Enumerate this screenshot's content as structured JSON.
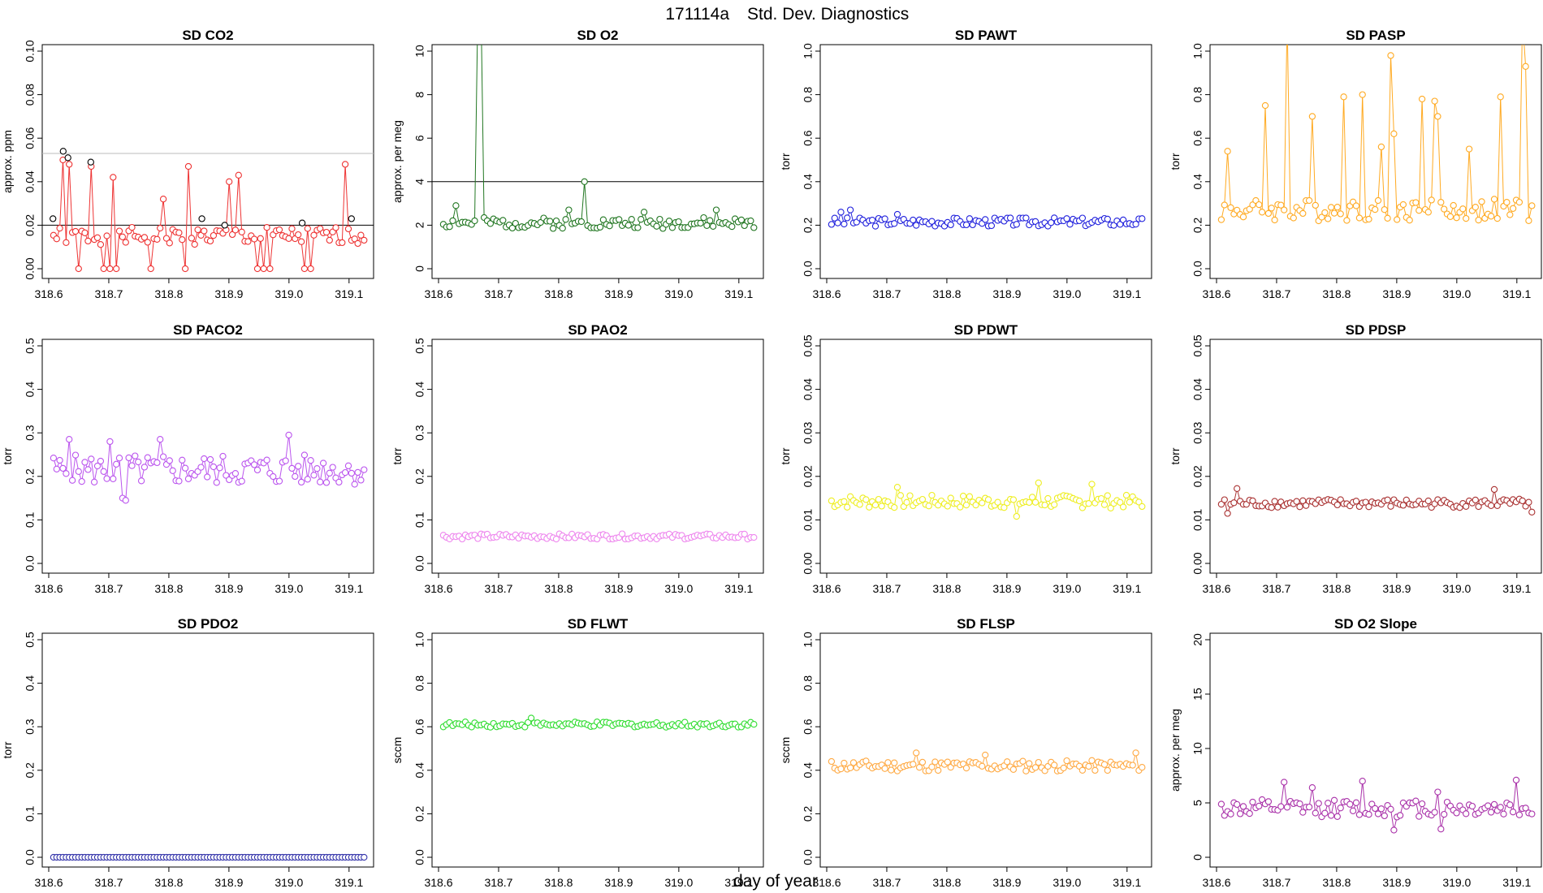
{
  "figure": {
    "title_id": "171114a",
    "title_text": "Std. Dev. Diagnostics",
    "xlabel": "day of year"
  },
  "chart_data": [
    {
      "title": "SD CO2",
      "type": "scatter",
      "ylabel": "approx. ppm",
      "color": "#ee3333",
      "ylim": [
        0,
        0.1
      ],
      "yticks": [
        "0.00",
        "0.02",
        "0.04",
        "0.06",
        "0.08",
        "0.10"
      ],
      "xlim": [
        318.6,
        319.13
      ],
      "xticks": [
        "318.6",
        "318.7",
        "318.8",
        "318.9",
        "319.0",
        "319.1"
      ],
      "hlines": [
        {
          "y": 0.02,
          "color": "#000000"
        },
        {
          "y": 0.053,
          "color": "#bbbbbb"
        }
      ],
      "black_points": [
        [
          318.607,
          0.023
        ],
        [
          318.624,
          0.054
        ],
        [
          318.632,
          0.051
        ],
        [
          318.67,
          0.049
        ],
        [
          318.855,
          0.023
        ],
        [
          318.893,
          0.02
        ],
        [
          319.022,
          0.021
        ],
        [
          319.104,
          0.023
        ]
      ],
      "base": 0.015,
      "amp": 0.004,
      "seed": 1,
      "spikes": [
        [
          318.624,
          0.05
        ],
        [
          318.632,
          0.048
        ],
        [
          318.67,
          0.047
        ],
        [
          318.708,
          0.042
        ],
        [
          318.77,
          0.041
        ],
        [
          318.79,
          0.032
        ],
        [
          318.832,
          0.047
        ],
        [
          318.9,
          0.04
        ],
        [
          318.915,
          0.043
        ],
        [
          318.947,
          0.049
        ],
        [
          319.095,
          0.048
        ]
      ],
      "zeros": [
        318.65,
        318.69,
        318.7,
        318.715,
        318.77,
        318.825,
        318.945,
        318.96,
        318.97,
        319.025,
        319.035
      ]
    },
    {
      "title": "SD O2",
      "type": "scatter",
      "ylabel": "approx. per meg",
      "color": "#227722",
      "ylim": [
        0,
        10
      ],
      "yticks": [
        "0",
        "2",
        "4",
        "6",
        "8",
        "10"
      ],
      "xlim": [
        318.6,
        319.13
      ],
      "xticks": [
        "318.6",
        "318.7",
        "318.8",
        "318.9",
        "319.0",
        "319.1"
      ],
      "hlines": [
        {
          "y": 4,
          "color": "#000000"
        }
      ],
      "base": 2.1,
      "amp": 0.25,
      "seed": 2,
      "spikes": [
        [
          318.63,
          2.9
        ],
        [
          318.665,
          12.0
        ],
        [
          318.673,
          12.0
        ],
        [
          318.818,
          2.7
        ],
        [
          318.843,
          4.0
        ],
        [
          318.942,
          2.6
        ],
        [
          319.06,
          2.7
        ]
      ],
      "zeros": []
    },
    {
      "title": "SD PAWT",
      "type": "scatter",
      "ylabel": "torr",
      "color": "#2222dd",
      "ylim": [
        0,
        1
      ],
      "yticks": [
        "0.0",
        "0.2",
        "0.4",
        "0.6",
        "0.8",
        "1.0"
      ],
      "xlim": [
        318.6,
        319.13
      ],
      "xticks": [
        "318.6",
        "318.7",
        "318.8",
        "318.9",
        "319.0",
        "319.1"
      ],
      "hlines": [],
      "base": 0.215,
      "amp": 0.02,
      "seed": 3,
      "spikes": [
        [
          318.64,
          0.27
        ],
        [
          318.625,
          0.26
        ],
        [
          318.717,
          0.25
        ]
      ],
      "zeros": []
    },
    {
      "title": "SD PASP",
      "type": "scatter",
      "ylabel": "torr",
      "color": "#ffaa22",
      "ylim": [
        0,
        1
      ],
      "yticks": [
        "0.0",
        "0.2",
        "0.4",
        "0.6",
        "0.8",
        "1.0"
      ],
      "xlim": [
        318.6,
        319.13
      ],
      "xticks": [
        "318.6",
        "318.7",
        "318.8",
        "318.9",
        "319.0",
        "319.1"
      ],
      "hlines": [],
      "base": 0.27,
      "amp": 0.05,
      "seed": 4,
      "spikes": [
        [
          318.618,
          0.54
        ],
        [
          318.68,
          0.75
        ],
        [
          318.717,
          1.15
        ],
        [
          318.76,
          0.7
        ],
        [
          318.812,
          0.79
        ],
        [
          318.843,
          0.8
        ],
        [
          318.875,
          0.56
        ],
        [
          318.888,
          0.98
        ],
        [
          318.893,
          0.62
        ],
        [
          318.94,
          0.78
        ],
        [
          318.965,
          0.77
        ],
        [
          318.97,
          0.7
        ],
        [
          319.02,
          0.55
        ],
        [
          319.072,
          0.79
        ],
        [
          319.11,
          1.15
        ],
        [
          319.117,
          0.93
        ]
      ],
      "zeros": []
    },
    {
      "title": "SD PACO2",
      "type": "scatter",
      "ylabel": "torr",
      "color": "#bb55ee",
      "ylim": [
        0,
        0.5
      ],
      "yticks": [
        "0.0",
        "0.1",
        "0.2",
        "0.3",
        "0.4",
        "0.5"
      ],
      "xlim": [
        318.6,
        319.13
      ],
      "xticks": [
        "318.6",
        "318.7",
        "318.8",
        "318.9",
        "319.0",
        "319.1"
      ],
      "hlines": [],
      "base": 0.215,
      "amp": 0.035,
      "seed": 5,
      "spikes": [
        [
          318.632,
          0.285
        ],
        [
          318.7,
          0.28
        ],
        [
          318.783,
          0.285
        ],
        [
          318.998,
          0.295
        ],
        [
          318.722,
          0.15
        ],
        [
          318.728,
          0.145
        ]
      ],
      "zeros": []
    },
    {
      "title": "SD PAO2",
      "type": "scatter",
      "ylabel": "torr",
      "color": "#ee88ee",
      "ylim": [
        0,
        0.5
      ],
      "yticks": [
        "0.0",
        "0.1",
        "0.2",
        "0.3",
        "0.4",
        "0.5"
      ],
      "xlim": [
        318.6,
        319.13
      ],
      "xticks": [
        "318.6",
        "318.7",
        "318.8",
        "318.9",
        "319.0",
        "319.1"
      ],
      "hlines": [],
      "base": 0.062,
      "amp": 0.006,
      "seed": 6,
      "spikes": [],
      "zeros": []
    },
    {
      "title": "SD PDWT",
      "type": "scatter",
      "ylabel": "torr",
      "color": "#eeee22",
      "ylim": [
        0,
        0.05
      ],
      "yticks": [
        "0.00",
        "0.01",
        "0.02",
        "0.03",
        "0.04",
        "0.05"
      ],
      "xlim": [
        318.6,
        319.13
      ],
      "xticks": [
        "318.6",
        "318.7",
        "318.8",
        "318.9",
        "319.0",
        "319.1"
      ],
      "hlines": [],
      "base": 0.0142,
      "amp": 0.0015,
      "seed": 7,
      "spikes": [
        [
          318.716,
          0.0175
        ],
        [
          318.955,
          0.0185
        ],
        [
          319.04,
          0.0182
        ],
        [
          318.915,
          0.0108
        ]
      ],
      "zeros": []
    },
    {
      "title": "SD PDSP",
      "type": "scatter",
      "ylabel": "torr",
      "color": "#aa3333",
      "ylim": [
        0,
        0.05
      ],
      "yticks": [
        "0.00",
        "0.01",
        "0.02",
        "0.03",
        "0.04",
        "0.05"
      ],
      "xlim": [
        318.6,
        319.13
      ],
      "xticks": [
        "318.6",
        "318.7",
        "318.8",
        "318.9",
        "319.0",
        "319.1"
      ],
      "hlines": [],
      "base": 0.0138,
      "amp": 0.001,
      "seed": 8,
      "spikes": [
        [
          318.632,
          0.0172
        ],
        [
          319.062,
          0.017
        ],
        [
          318.618,
          0.0115
        ],
        [
          319.125,
          0.0118
        ]
      ],
      "zeros": []
    },
    {
      "title": "SD PDO2",
      "type": "scatter",
      "ylabel": "torr",
      "color": "#3333aa",
      "ylim": [
        0,
        0.5
      ],
      "yticks": [
        "0.0",
        "0.1",
        "0.2",
        "0.3",
        "0.4",
        "0.5"
      ],
      "xlim": [
        318.6,
        319.13
      ],
      "xticks": [
        "318.6",
        "318.7",
        "318.8",
        "318.9",
        "319.0",
        "319.1"
      ],
      "hlines": [],
      "base": 0.0,
      "amp": 0.0,
      "seed": 9,
      "spikes": [],
      "zeros": []
    },
    {
      "title": "SD FLWT",
      "type": "scatter",
      "ylabel": "sccm",
      "color": "#33dd33",
      "ylim": [
        0,
        1
      ],
      "yticks": [
        "0.0",
        "0.2",
        "0.4",
        "0.6",
        "0.8",
        "1.0"
      ],
      "xlim": [
        318.6,
        319.13
      ],
      "xticks": [
        "318.6",
        "318.7",
        "318.8",
        "318.9",
        "319.0",
        "319.1"
      ],
      "hlines": [],
      "base": 0.61,
      "amp": 0.012,
      "seed": 10,
      "spikes": [
        [
          318.755,
          0.64
        ]
      ],
      "zeros": []
    },
    {
      "title": "SD FLSP",
      "type": "scatter",
      "ylabel": "sccm",
      "color": "#ffaa44",
      "ylim": [
        0,
        1
      ],
      "yticks": [
        "0.0",
        "0.2",
        "0.4",
        "0.6",
        "0.8",
        "1.0"
      ],
      "xlim": [
        318.6,
        319.13
      ],
      "xticks": [
        "318.6",
        "318.7",
        "318.8",
        "318.9",
        "319.0",
        "319.1"
      ],
      "hlines": [],
      "base": 0.42,
      "amp": 0.025,
      "seed": 11,
      "spikes": [
        [
          318.75,
          0.48
        ],
        [
          318.862,
          0.47
        ],
        [
          319.115,
          0.48
        ]
      ],
      "zeros": []
    },
    {
      "title": "SD O2 Slope",
      "type": "scatter",
      "ylabel": "approx. per meg",
      "color": "#aa33aa",
      "ylim": [
        0,
        20
      ],
      "yticks": [
        "0",
        "5",
        "10",
        "15",
        "20"
      ],
      "xlim": [
        318.6,
        319.13
      ],
      "xticks": [
        "318.6",
        "318.7",
        "318.8",
        "318.9",
        "319.0",
        "319.1"
      ],
      "hlines": [],
      "base": 4.5,
      "amp": 0.8,
      "seed": 12,
      "spikes": [
        [
          318.715,
          6.9
        ],
        [
          318.76,
          6.4
        ],
        [
          318.843,
          7.0
        ],
        [
          318.97,
          6.0
        ],
        [
          319.1,
          7.1
        ],
        [
          318.895,
          2.5
        ],
        [
          318.975,
          2.6
        ]
      ],
      "zeros": []
    }
  ]
}
